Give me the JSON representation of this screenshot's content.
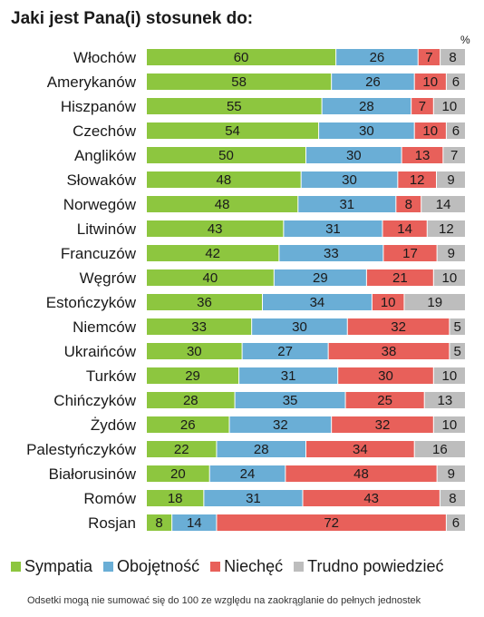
{
  "chart_data": {
    "type": "bar",
    "stacked": true,
    "orientation": "horizontal",
    "title": "Jaki jest Pana(i) stosunek do:",
    "unit": "%",
    "note": "Odsetki mogą nie sumować się do 100 ze względu na zaokrąglanie do pełnych jednostek",
    "legend_position": "bottom",
    "categories": [
      "Włochów",
      "Amerykanów",
      "Hiszpanów",
      "Czechów",
      "Anglików",
      "Słowaków",
      "Norwegów",
      "Litwinów",
      "Francuzów",
      "Węgrów",
      "Estończyków",
      "Niemców",
      "Ukraińców",
      "Turków",
      "Chińczyków",
      "Żydów",
      "Palestyńczyków",
      "Białorusinów",
      "Romów",
      "Rosjan"
    ],
    "series": [
      {
        "name": "Sympatia",
        "color": "#8dc63f",
        "values": [
          60,
          58,
          55,
          54,
          50,
          48,
          48,
          43,
          42,
          40,
          36,
          33,
          30,
          29,
          28,
          26,
          22,
          20,
          18,
          8
        ]
      },
      {
        "name": "Obojętność",
        "color": "#6aaed6",
        "values": [
          26,
          26,
          28,
          30,
          30,
          30,
          31,
          31,
          33,
          29,
          34,
          30,
          27,
          31,
          35,
          32,
          28,
          24,
          31,
          14
        ]
      },
      {
        "name": "Niechęć",
        "color": "#e8605a",
        "values": [
          7,
          10,
          7,
          10,
          13,
          12,
          8,
          14,
          17,
          21,
          10,
          32,
          38,
          30,
          25,
          32,
          34,
          48,
          43,
          72
        ]
      },
      {
        "name": "Trudno powiedzieć",
        "color": "#bdbdbd",
        "values": [
          8,
          6,
          10,
          6,
          7,
          9,
          14,
          12,
          9,
          10,
          19,
          5,
          5,
          10,
          13,
          10,
          16,
          9,
          8,
          6
        ]
      }
    ]
  }
}
